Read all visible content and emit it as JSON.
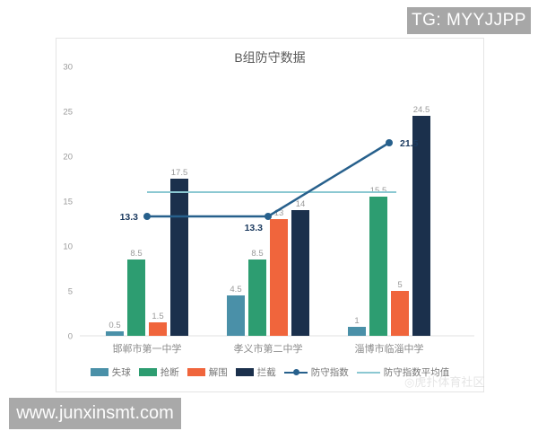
{
  "overlays": {
    "tg_badge": "TG: MYYJJPP",
    "url_badge": "www.junxinsmt.com",
    "watermark": "◎虎扑体育社区"
  },
  "chart_data": {
    "type": "bar",
    "subtype": "grouped-bars-with-line",
    "title": "B组防守数据",
    "categories": [
      "邯郸市第一中学",
      "孝义市第二中学",
      "淄博市临淄中学"
    ],
    "series": [
      {
        "name": "失球",
        "kind": "bar",
        "color": "#4a90a8",
        "values": [
          0.5,
          4.5,
          1
        ],
        "labels": [
          "0.5",
          "4.5",
          "1"
        ]
      },
      {
        "name": "抢断",
        "kind": "bar",
        "color": "#2d9d71",
        "values": [
          8.5,
          8.5,
          15.5
        ],
        "labels": [
          "8.5",
          "8.5",
          "15.5"
        ]
      },
      {
        "name": "解围",
        "kind": "bar",
        "color": "#f0653c",
        "values": [
          1.5,
          13,
          5
        ],
        "labels": [
          "1.5",
          "13",
          "5"
        ]
      },
      {
        "name": "拦截",
        "kind": "bar",
        "color": "#1b304c",
        "values": [
          17.5,
          14,
          24.5
        ],
        "labels": [
          "17.5",
          "14",
          "24.5"
        ]
      },
      {
        "name": "防守指数",
        "kind": "line",
        "color": "#27608c",
        "values": [
          13.3,
          13.3,
          21.5
        ],
        "labels": [
          "13.3",
          "13.3",
          "21.5"
        ]
      },
      {
        "name": "防守指数平均值",
        "kind": "avgline",
        "color": "#8bc8d2",
        "value": 16.0
      }
    ],
    "ylim": [
      0,
      30
    ],
    "yticks": [
      0,
      5,
      10,
      15,
      20,
      25,
      30
    ],
    "grid": false,
    "legend_position": "bottom",
    "colors": {
      "axis_line": "#e0e0e0",
      "tick_label": "#9a9a9a",
      "bar_label": "#9a9a9a",
      "category_label": "#8c8c8c",
      "line_label": "#1b3a5f"
    }
  }
}
